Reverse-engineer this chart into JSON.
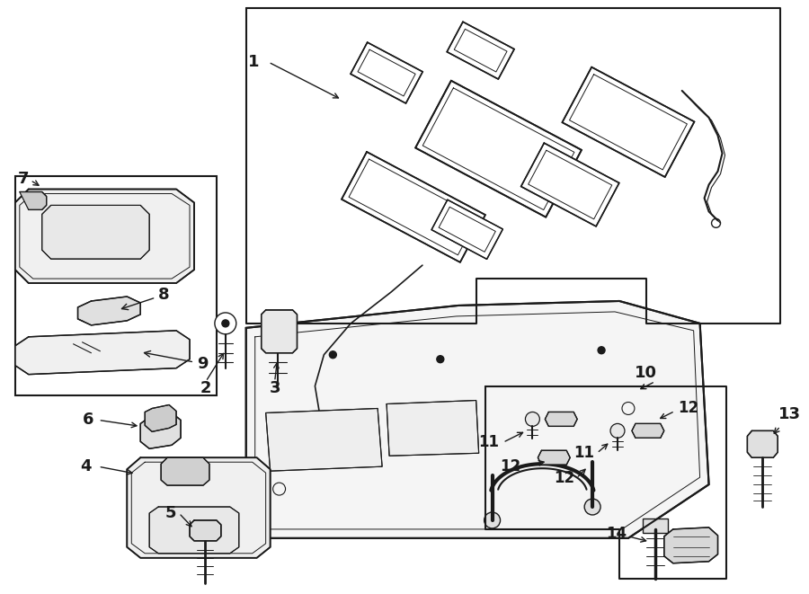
{
  "bg_color": "#ffffff",
  "line_color": "#1a1a1a",
  "fig_width": 9.0,
  "fig_height": 6.61,
  "dpi": 100,
  "font_size": 13
}
